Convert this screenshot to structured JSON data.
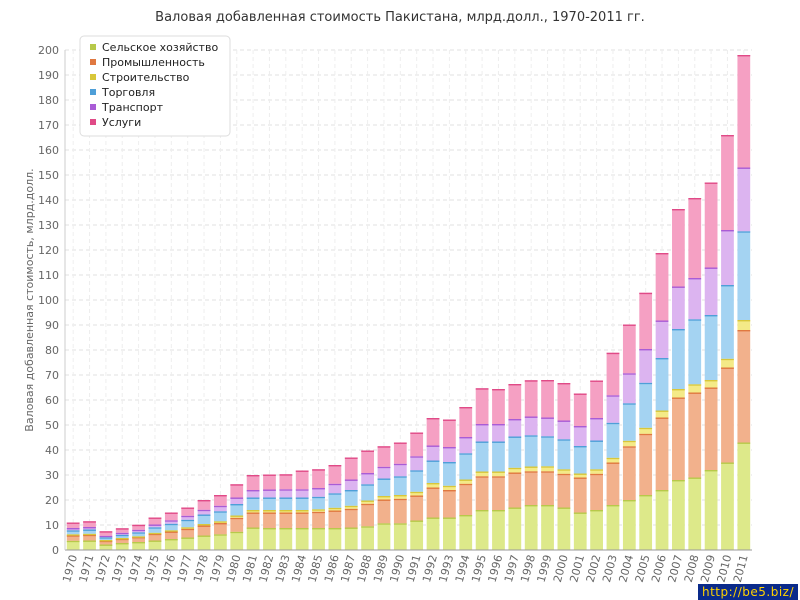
{
  "title": "Валовая добавленная стоимость Пакистана, млрд.долл., 1970-2011 гг.",
  "watermark": "http://be5.biz/",
  "chart_data": {
    "type": "bar",
    "stacked": true,
    "title": "Валовая добавленная стоимость Пакистана, млрд.долл., 1970-2011 гг.",
    "xlabel": "",
    "ylabel": "Валовая добавленная стоимость, млрд.долл.",
    "ylim": [
      0,
      200
    ],
    "yticks": [
      0,
      10,
      20,
      30,
      40,
      50,
      60,
      70,
      80,
      90,
      100,
      110,
      120,
      130,
      140,
      150,
      160,
      170,
      180,
      190,
      200
    ],
    "grid": true,
    "legend_position": "top-left",
    "categories": [
      "1970",
      "1971",
      "1972",
      "1973",
      "1974",
      "1975",
      "1976",
      "1977",
      "1978",
      "1979",
      "1980",
      "1981",
      "1982",
      "1983",
      "1984",
      "1985",
      "1986",
      "1987",
      "1988",
      "1989",
      "1990",
      "1991",
      "1992",
      "1993",
      "1994",
      "1995",
      "1996",
      "1997",
      "1998",
      "1999",
      "2000",
      "2001",
      "2002",
      "2003",
      "2004",
      "2005",
      "2006",
      "2007",
      "2008",
      "2009",
      "2010",
      "2011"
    ],
    "series": [
      {
        "name": "Сельское хозяйство",
        "color": "#dde98a",
        "edge": "#b7c94a",
        "values": [
          3.7,
          3.8,
          2.2,
          2.8,
          3.2,
          3.8,
          4.4,
          5.0,
          5.8,
          6.3,
          7.3,
          9.0,
          8.8,
          8.8,
          8.8,
          8.8,
          8.8,
          9.0,
          9.5,
          10.7,
          10.7,
          11.8,
          13.0,
          13.0,
          14.0,
          16.0,
          16.0,
          17.0,
          18.0,
          18.0,
          17.0,
          15.0,
          16.0,
          18.0,
          20.0,
          22.0,
          24.0,
          28.0,
          29.0,
          32.0,
          35.0,
          43.0
        ]
      },
      {
        "name": "Промышленность",
        "color": "#f2b18c",
        "edge": "#e07840",
        "values": [
          2.2,
          2.3,
          1.5,
          1.7,
          2.0,
          2.7,
          3.0,
          3.5,
          4.0,
          4.5,
          5.6,
          6.0,
          6.2,
          6.2,
          6.2,
          6.5,
          7.0,
          7.5,
          9.0,
          9.5,
          9.8,
          10.0,
          12.0,
          11.0,
          12.5,
          13.5,
          13.5,
          14.0,
          13.5,
          13.5,
          13.5,
          14.0,
          14.5,
          17.0,
          21.5,
          24.5,
          29.0,
          33.0,
          34.0,
          33.0,
          38.0,
          45.0
        ]
      },
      {
        "name": "Строительство",
        "color": "#f4ea87",
        "edge": "#d8c73a",
        "values": [
          0.4,
          0.4,
          0.3,
          0.3,
          0.3,
          0.4,
          0.5,
          0.6,
          0.6,
          0.7,
          0.9,
          1.0,
          1.0,
          1.0,
          1.0,
          1.0,
          1.1,
          1.2,
          1.3,
          1.4,
          1.5,
          1.5,
          1.8,
          1.7,
          1.7,
          1.9,
          1.9,
          1.9,
          1.9,
          2.0,
          1.8,
          1.6,
          1.8,
          1.9,
          2.2,
          2.4,
          2.8,
          3.4,
          3.3,
          3.0,
          3.5,
          4.0
        ]
      },
      {
        "name": "Торговля",
        "color": "#a4d3f2",
        "edge": "#4e9fd8",
        "values": [
          1.6,
          1.7,
          1.1,
          1.3,
          1.6,
          2.2,
          2.6,
          3.0,
          3.8,
          4.0,
          4.6,
          5.0,
          5.0,
          5.0,
          5.0,
          5.0,
          5.8,
          6.3,
          6.5,
          7.0,
          7.5,
          8.6,
          9.0,
          9.5,
          10.5,
          12.0,
          12.0,
          12.5,
          12.5,
          12.0,
          12.0,
          11.0,
          11.5,
          14.0,
          15.0,
          18.0,
          21.0,
          24.0,
          26.0,
          26.0,
          29.5,
          35.5
        ]
      },
      {
        "name": "Транспорт",
        "color": "#dcb4f0",
        "edge": "#a95cd6",
        "values": [
          0.9,
          1.0,
          0.6,
          0.8,
          1.0,
          1.1,
          1.4,
          1.6,
          1.9,
          2.2,
          2.6,
          3.0,
          3.2,
          3.3,
          3.3,
          3.5,
          3.8,
          4.2,
          4.5,
          4.7,
          5.0,
          5.6,
          6.0,
          6.0,
          6.5,
          7.0,
          7.0,
          7.0,
          7.5,
          7.5,
          7.5,
          8.0,
          9.0,
          11.0,
          12.0,
          13.5,
          15.0,
          17.0,
          16.5,
          19.0,
          22.0,
          25.5
        ]
      },
      {
        "name": "Услуги",
        "color": "#f5a0c3",
        "edge": "#e04a87",
        "values": [
          2.2,
          2.3,
          1.8,
          1.8,
          2.0,
          2.8,
          3.1,
          3.3,
          3.9,
          4.3,
          5.3,
          6.0,
          6.0,
          6.0,
          7.5,
          7.5,
          7.5,
          8.8,
          9.0,
          8.2,
          8.5,
          9.5,
          11.0,
          11.0,
          12.0,
          14.3,
          14.0,
          14.0,
          14.5,
          15.0,
          15.0,
          13.0,
          15.0,
          17.0,
          19.5,
          22.5,
          27.0,
          31.0,
          32.0,
          34.0,
          38.0,
          45.0
        ]
      }
    ]
  }
}
